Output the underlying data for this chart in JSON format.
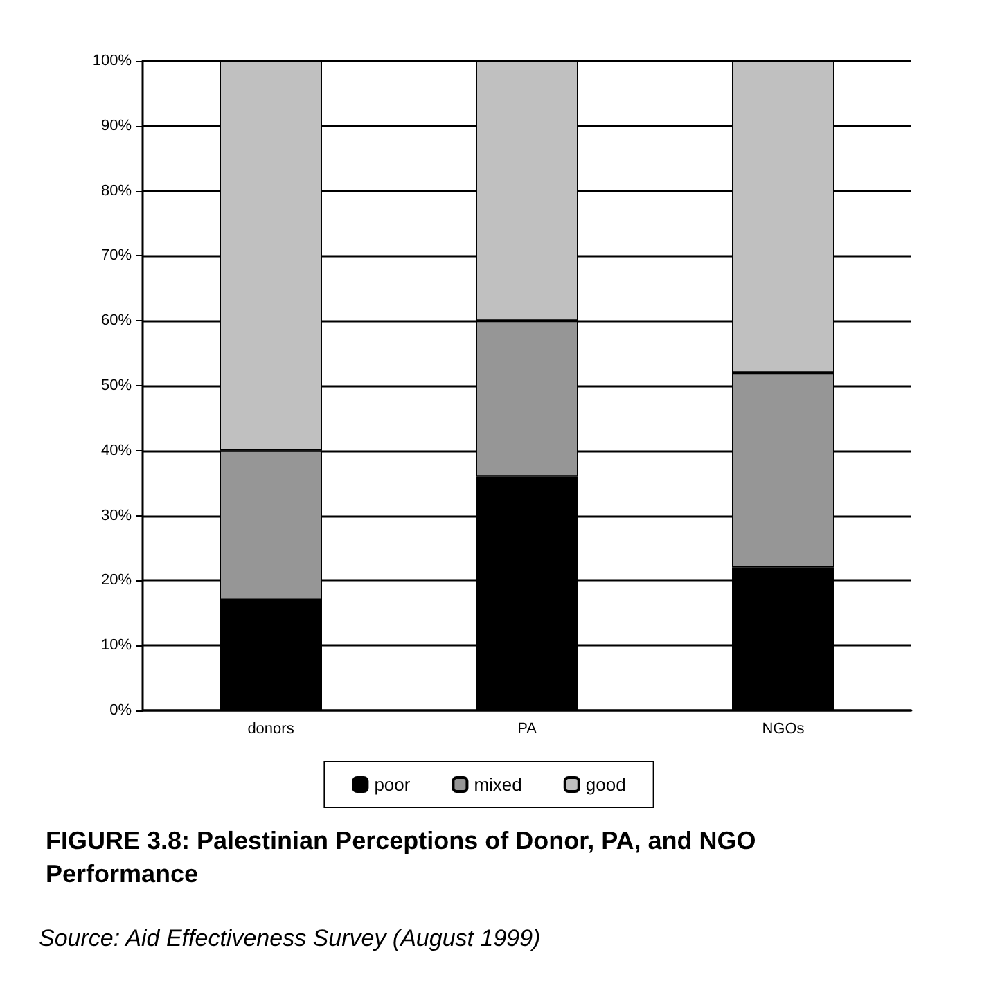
{
  "chart_data": {
    "type": "bar",
    "stacked": true,
    "title": "FIGURE 3.8: Palestinian Perceptions of Donor, PA, and NGO Performance",
    "annotations": [
      "Source: Aid Effectiveness Survey (August 1999)"
    ],
    "categories": [
      "donors",
      "PA",
      "NGOs"
    ],
    "series": [
      {
        "name": "poor",
        "color": "#000000",
        "values": [
          17,
          36,
          22
        ]
      },
      {
        "name": "mixed",
        "color": "#969696",
        "values": [
          23,
          24,
          30
        ]
      },
      {
        "name": "good",
        "color": "#c0c0c0",
        "values": [
          60,
          40,
          48
        ]
      }
    ],
    "ylim": [
      0,
      100
    ],
    "yticks": [
      {
        "value": 0,
        "label": "0%"
      },
      {
        "value": 10,
        "label": "10%"
      },
      {
        "value": 20,
        "label": "20%"
      },
      {
        "value": 30,
        "label": "30%"
      },
      {
        "value": 40,
        "label": "40%"
      },
      {
        "value": 50,
        "label": "50%"
      },
      {
        "value": 60,
        "label": "60%"
      },
      {
        "value": 70,
        "label": "70%"
      },
      {
        "value": 80,
        "label": "80%"
      },
      {
        "value": 90,
        "label": "90%"
      },
      {
        "value": 100,
        "label": "100%"
      }
    ],
    "grid": "y",
    "legend": "bottom"
  }
}
